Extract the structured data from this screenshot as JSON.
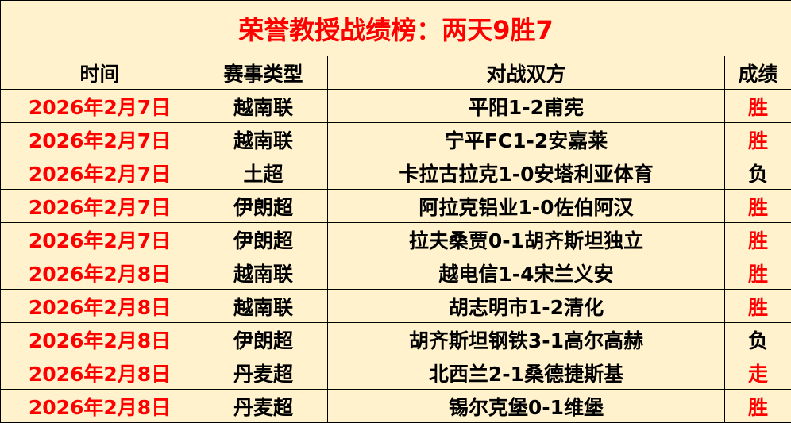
{
  "title": "荣誉教授战绩榜：两天9胜7",
  "headers": {
    "time": "时间",
    "type": "赛事类型",
    "match": "对战双方",
    "result": "成绩"
  },
  "colors": {
    "accent": "#ff0000",
    "background": "#fff2cc"
  },
  "rows": [
    {
      "date": "2026年2月7日",
      "type": "越南联",
      "match": "平阳1-2甫宪",
      "result": "胜"
    },
    {
      "date": "2026年2月7日",
      "type": "越南联",
      "match": "宁平FC1-2安嘉莱",
      "result": "胜"
    },
    {
      "date": "2026年2月7日",
      "type": "土超",
      "match": "卡拉古拉克1-0安塔利亚体育",
      "result": "负"
    },
    {
      "date": "2026年2月7日",
      "type": "伊朗超",
      "match": "阿拉克铝业1-0佐伯阿汉",
      "result": "胜"
    },
    {
      "date": "2026年2月7日",
      "type": "伊朗超",
      "match": "拉夫桑贾0-1胡齐斯坦独立",
      "result": "胜"
    },
    {
      "date": "2026年2月8日",
      "type": "越南联",
      "match": "越电信1-4宋兰义安",
      "result": "胜"
    },
    {
      "date": "2026年2月8日",
      "type": "越南联",
      "match": "胡志明市1-2清化",
      "result": "胜"
    },
    {
      "date": "2026年2月8日",
      "type": "伊朗超",
      "match": "胡齐斯坦钢铁3-1高尔高赫",
      "result": "负"
    },
    {
      "date": "2026年2月8日",
      "type": "丹麦超",
      "match": "北西兰2-1桑德捷斯基",
      "result": "走"
    },
    {
      "date": "2026年2月8日",
      "type": "丹麦超",
      "match": "锡尔克堡0-1维堡",
      "result": "胜"
    }
  ]
}
